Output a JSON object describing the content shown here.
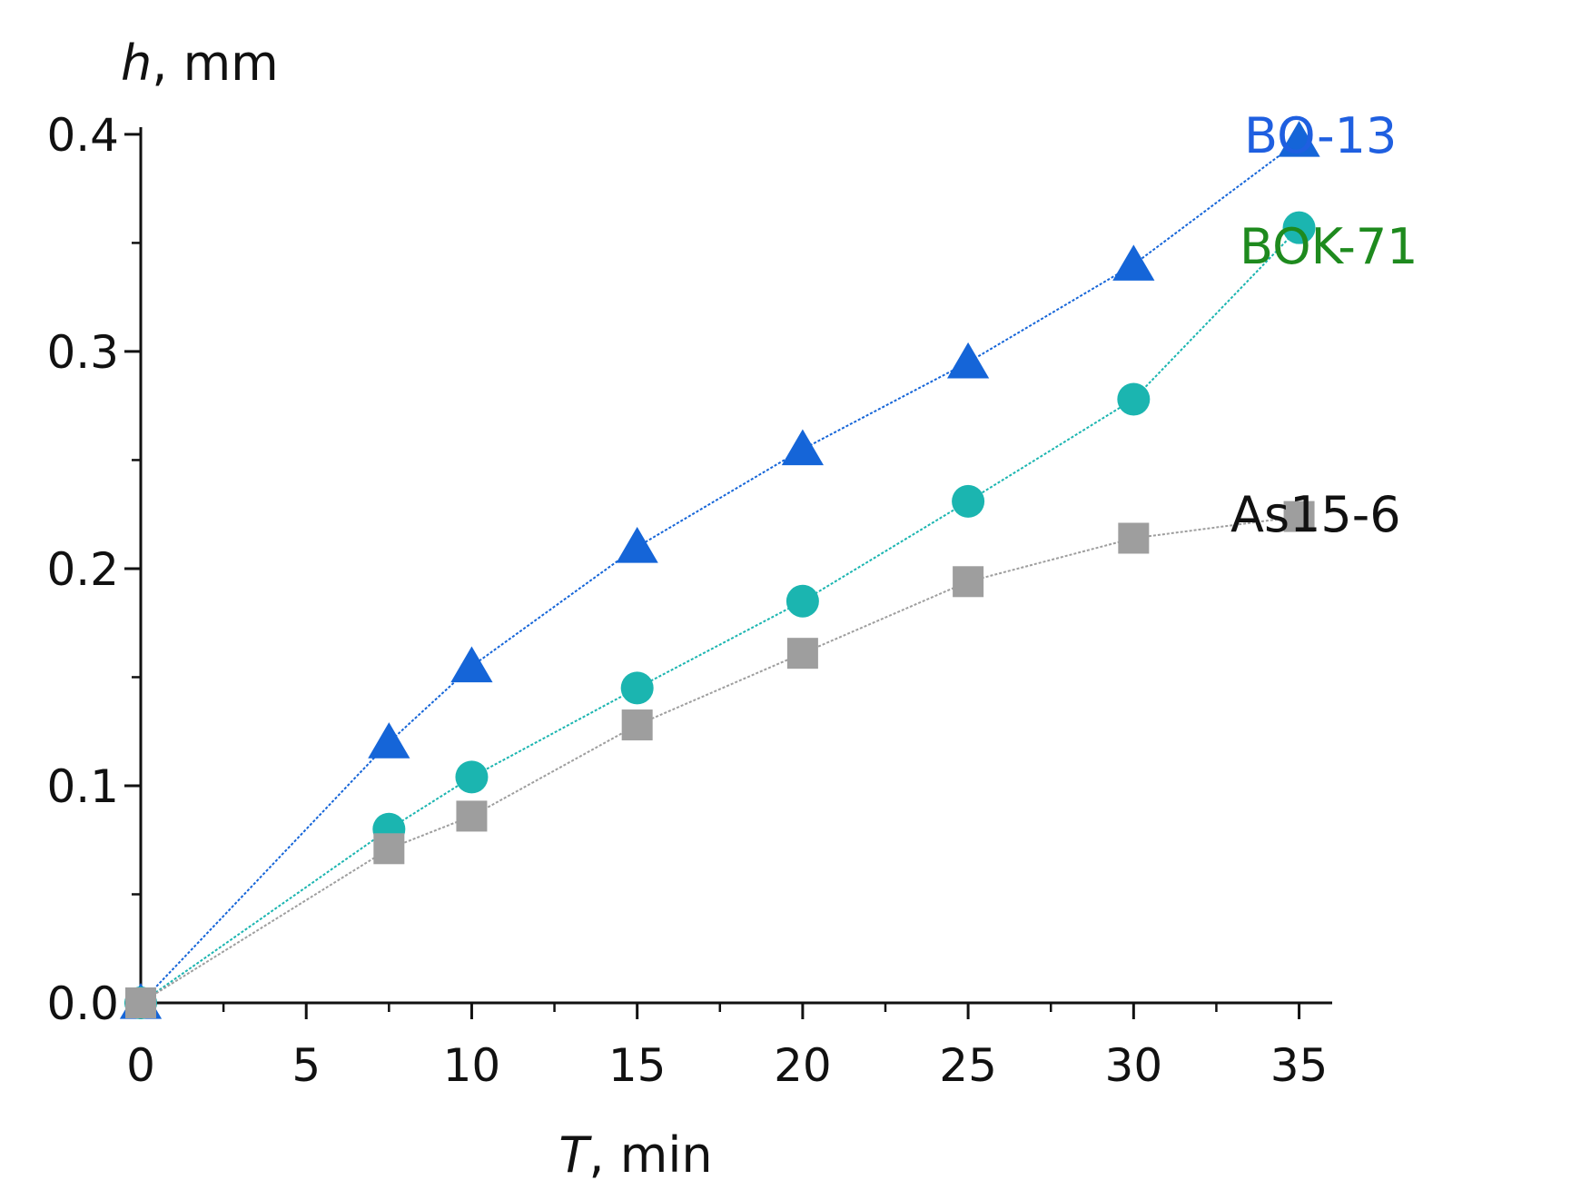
{
  "chart_data": {
    "type": "line",
    "title": "",
    "xlabel_var": "T",
    "xlabel_unit": ", min",
    "ylabel_var": "h",
    "ylabel_unit": ", mm",
    "xlim": [
      0,
      36
    ],
    "ylim": [
      0,
      0.41
    ],
    "x_ticks": [
      0,
      5,
      10,
      15,
      20,
      25,
      30,
      35
    ],
    "x_tick_labels": [
      "0",
      "5",
      "10",
      "15",
      "20",
      "25",
      "30",
      "35"
    ],
    "y_ticks": [
      0,
      0.1,
      0.2,
      0.3,
      0.4
    ],
    "y_tick_labels": [
      "0.0",
      "0.1",
      "0.2",
      "0.3",
      "0.4"
    ],
    "grid": false,
    "series": [
      {
        "name": "BO-13",
        "marker": "triangle",
        "color": "#1565d8",
        "label_color": "#1f5fe0",
        "x": [
          0,
          7.5,
          10,
          15,
          20,
          25,
          30,
          35
        ],
        "y": [
          0,
          0.12,
          0.155,
          0.21,
          0.255,
          0.295,
          0.34,
          0.397
        ]
      },
      {
        "name": "BOK-71",
        "marker": "circle",
        "color": "#1bb5b0",
        "label_color": "#1e8a1e",
        "x": [
          0,
          7.5,
          10,
          15,
          20,
          25,
          30,
          35
        ],
        "y": [
          0,
          0.08,
          0.104,
          0.145,
          0.185,
          0.231,
          0.278,
          0.357
        ]
      },
      {
        "name": "As15-6",
        "marker": "square",
        "color": "#9e9e9e",
        "label_color": "#111111",
        "x": [
          0,
          7.5,
          10,
          15,
          20,
          25,
          30,
          35
        ],
        "y": [
          0,
          0.071,
          0.086,
          0.128,
          0.161,
          0.194,
          0.214,
          0.224
        ]
      }
    ]
  }
}
